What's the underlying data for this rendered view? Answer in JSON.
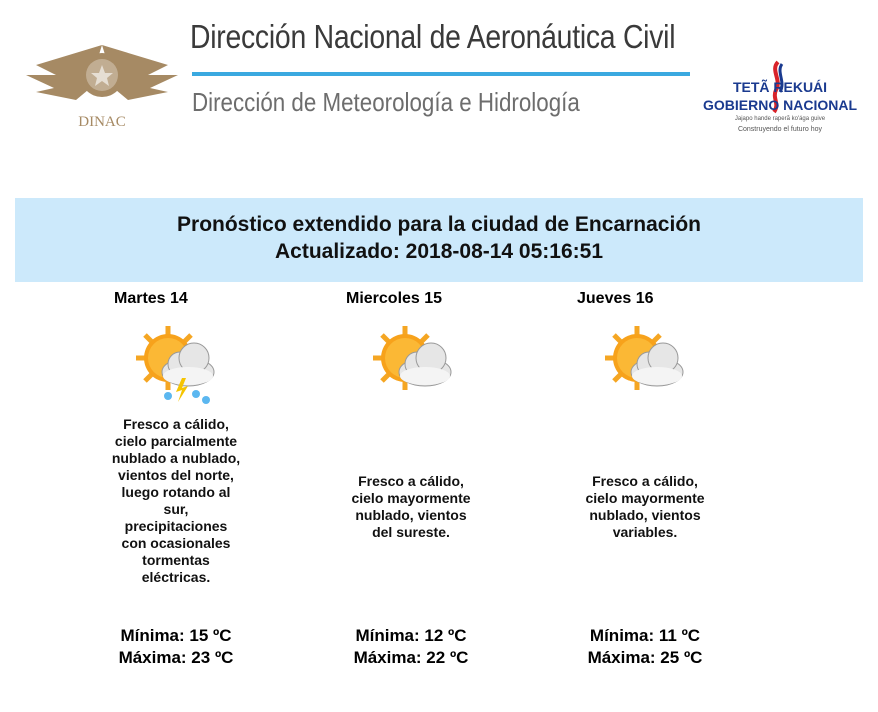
{
  "header": {
    "logo_text": "DINAC",
    "title": "Dirección Nacional de Aeronáutica Civil",
    "subtitle": "Dirección de Meteorología e Hidrología",
    "gov_logo": {
      "line1": "TETÃ REKUÁI",
      "line2": "GOBIERNO NACIONAL",
      "line3": "Jajapo hande raperã ko'ága guive",
      "line4": "Construyendo el futuro hoy"
    },
    "accent_color": "#3aa9e0"
  },
  "banner": {
    "title": "Pronóstico extendido para la ciudad de Encarnación",
    "updated": "Actualizado: 2018-08-14 05:16:51",
    "bg_color": "#cce9fb"
  },
  "days": [
    {
      "name": "Martes 14",
      "icon": "sun-cloud-storm-icon",
      "description": "Fresco a cálido, cielo parcialmente nublado a nublado, vientos del norte, luego rotando al sur, precipitaciones con ocasionales tormentas eléctricas.",
      "min": "Mínima: 15 ºC",
      "max": "Máxima: 23 ºC"
    },
    {
      "name": "Miercoles 15",
      "icon": "sun-cloud-icon",
      "description": "Fresco a cálido, cielo mayormente nublado, vientos del sureste.",
      "min": "Mínima: 12 ºC",
      "max": "Máxima: 22 ºC"
    },
    {
      "name": "Jueves 16",
      "icon": "sun-cloud-icon",
      "description": "Fresco a cálido, cielo mayormente nublado, vientos variables.",
      "min": "Mínima: 11 ºC",
      "max": "Máxima: 25 ºC"
    }
  ]
}
